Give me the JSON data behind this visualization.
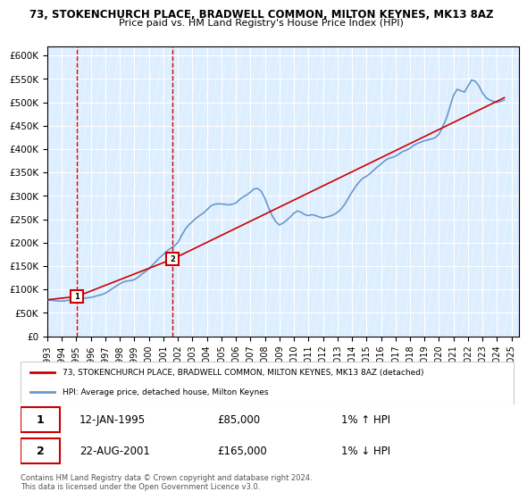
{
  "title1": "73, STOKENCHURCH PLACE, BRADWELL COMMON, MILTON KEYNES, MK13 8AZ",
  "title2": "Price paid vs. HM Land Registry's House Price Index (HPI)",
  "xlabel": "",
  "ylabel": "",
  "ylim": [
    0,
    620000
  ],
  "yticks": [
    0,
    50000,
    100000,
    150000,
    200000,
    250000,
    300000,
    350000,
    400000,
    450000,
    500000,
    550000,
    600000
  ],
  "ytick_labels": [
    "£0",
    "£50K",
    "£100K",
    "£150K",
    "£200K",
    "£250K",
    "£300K",
    "£350K",
    "£400K",
    "£450K",
    "£500K",
    "£550K",
    "£600K"
  ],
  "xlim_start": 1993.0,
  "xlim_end": 2025.5,
  "background_color": "#ddeeff",
  "plot_bg_color": "#ddeeff",
  "hpi_line_color": "#6699cc",
  "price_line_color": "#cc0000",
  "dashed_vline_color": "#cc0000",
  "marker1_date": 1995.04,
  "marker1_price": 85000,
  "marker1_label": "1",
  "marker2_date": 2001.64,
  "marker2_price": 165000,
  "marker2_label": "2",
  "sale1_date": "12-JAN-1995",
  "sale1_price": "£85,000",
  "sale1_hpi": "1% ↑ HPI",
  "sale2_date": "22-AUG-2001",
  "sale2_price": "£165,000",
  "sale2_hpi": "1% ↓ HPI",
  "legend_line1": "73, STOKENCHURCH PLACE, BRADWELL COMMON, MILTON KEYNES, MK13 8AZ (detached)",
  "legend_line2": "HPI: Average price, detached house, Milton Keynes",
  "footer": "Contains HM Land Registry data © Crown copyright and database right 2024.\nThis data is licensed under the Open Government Licence v3.0.",
  "hpi_data_x": [
    1993.0,
    1993.25,
    1993.5,
    1993.75,
    1994.0,
    1994.25,
    1994.5,
    1994.75,
    1995.0,
    1995.25,
    1995.5,
    1995.75,
    1996.0,
    1996.25,
    1996.5,
    1996.75,
    1997.0,
    1997.25,
    1997.5,
    1997.75,
    1998.0,
    1998.25,
    1998.5,
    1998.75,
    1999.0,
    1999.25,
    1999.5,
    1999.75,
    2000.0,
    2000.25,
    2000.5,
    2000.75,
    2001.0,
    2001.25,
    2001.5,
    2001.75,
    2002.0,
    2002.25,
    2002.5,
    2002.75,
    2003.0,
    2003.25,
    2003.5,
    2003.75,
    2004.0,
    2004.25,
    2004.5,
    2004.75,
    2005.0,
    2005.25,
    2005.5,
    2005.75,
    2006.0,
    2006.25,
    2006.5,
    2006.75,
    2007.0,
    2007.25,
    2007.5,
    2007.75,
    2008.0,
    2008.25,
    2008.5,
    2008.75,
    2009.0,
    2009.25,
    2009.5,
    2009.75,
    2010.0,
    2010.25,
    2010.5,
    2010.75,
    2011.0,
    2011.25,
    2011.5,
    2011.75,
    2012.0,
    2012.25,
    2012.5,
    2012.75,
    2013.0,
    2013.25,
    2013.5,
    2013.75,
    2014.0,
    2014.25,
    2014.5,
    2014.75,
    2015.0,
    2015.25,
    2015.5,
    2015.75,
    2016.0,
    2016.25,
    2016.5,
    2016.75,
    2017.0,
    2017.25,
    2017.5,
    2017.75,
    2018.0,
    2018.25,
    2018.5,
    2018.75,
    2019.0,
    2019.25,
    2019.5,
    2019.75,
    2020.0,
    2020.25,
    2020.5,
    2020.75,
    2021.0,
    2021.25,
    2021.5,
    2021.75,
    2022.0,
    2022.25,
    2022.5,
    2022.75,
    2023.0,
    2023.25,
    2023.5,
    2023.75,
    2024.0,
    2024.25,
    2024.5
  ],
  "hpi_data_y": [
    78000,
    77000,
    76000,
    75500,
    75000,
    76000,
    77000,
    78000,
    79000,
    80000,
    81000,
    82000,
    83000,
    85000,
    87000,
    89000,
    92000,
    97000,
    102000,
    107000,
    112000,
    116000,
    118000,
    119000,
    121000,
    126000,
    132000,
    138000,
    144000,
    152000,
    160000,
    168000,
    175000,
    182000,
    188000,
    193000,
    200000,
    215000,
    228000,
    238000,
    245000,
    252000,
    258000,
    263000,
    270000,
    278000,
    282000,
    283000,
    283000,
    282000,
    281000,
    282000,
    285000,
    292000,
    298000,
    302000,
    308000,
    315000,
    316000,
    310000,
    295000,
    275000,
    258000,
    245000,
    238000,
    242000,
    248000,
    255000,
    263000,
    268000,
    265000,
    260000,
    258000,
    260000,
    258000,
    255000,
    253000,
    255000,
    257000,
    260000,
    265000,
    272000,
    282000,
    295000,
    308000,
    320000,
    330000,
    338000,
    342000,
    348000,
    355000,
    362000,
    368000,
    375000,
    380000,
    382000,
    385000,
    390000,
    395000,
    398000,
    402000,
    408000,
    412000,
    415000,
    418000,
    420000,
    422000,
    425000,
    432000,
    448000,
    465000,
    490000,
    515000,
    528000,
    525000,
    522000,
    535000,
    548000,
    545000,
    535000,
    520000,
    510000,
    505000,
    502000,
    500000,
    502000,
    505000
  ],
  "price_data_x": [
    1993.0,
    1995.04,
    2001.64,
    2024.5
  ],
  "price_data_y": [
    78000,
    85000,
    165000,
    510000
  ],
  "xtick_years": [
    1993,
    1994,
    1995,
    1996,
    1997,
    1998,
    1999,
    2000,
    2001,
    2002,
    2003,
    2004,
    2005,
    2006,
    2007,
    2008,
    2009,
    2010,
    2011,
    2012,
    2013,
    2014,
    2015,
    2016,
    2017,
    2018,
    2019,
    2020,
    2021,
    2022,
    2023,
    2024,
    2025
  ]
}
